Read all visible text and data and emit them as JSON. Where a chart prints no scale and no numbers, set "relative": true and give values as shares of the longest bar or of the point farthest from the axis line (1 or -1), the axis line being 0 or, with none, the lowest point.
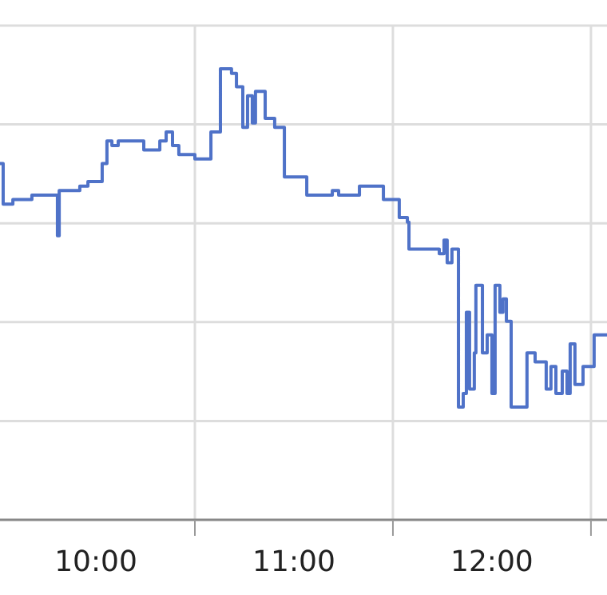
{
  "chart_data": {
    "type": "step",
    "relative": true,
    "grid": true,
    "legend": false,
    "xlim": [
      9.516,
      12.581
    ],
    "xticks": [
      {
        "value": 10,
        "label": "10:00"
      },
      {
        "value": 10.5,
        "label": null
      },
      {
        "value": 11,
        "label": "11:00"
      },
      {
        "value": 11.5,
        "label": null
      },
      {
        "value": 12,
        "label": "12:00"
      },
      {
        "value": 12.5,
        "label": null
      }
    ],
    "series": [
      {
        "color": "#4f72c8",
        "x": [
          9.516,
          9.532,
          9.581,
          9.621,
          9.677,
          9.758,
          9.806,
          9.815,
          9.919,
          9.96,
          10.032,
          10.056,
          10.081,
          10.113,
          10.242,
          10.323,
          10.355,
          10.387,
          10.419,
          10.5,
          10.548,
          10.581,
          10.629,
          10.685,
          10.71,
          10.742,
          10.766,
          10.79,
          10.806,
          10.839,
          10.855,
          10.903,
          10.952,
          11.065,
          11.194,
          11.226,
          11.331,
          11.419,
          11.452,
          11.532,
          11.573,
          11.581,
          11.734,
          11.758,
          11.774,
          11.798,
          11.831,
          11.855,
          11.871,
          11.887,
          11.911,
          11.919,
          11.952,
          11.976,
          12.0,
          12.016,
          12.04,
          12.056,
          12.073,
          12.097,
          12.177,
          12.218,
          12.274,
          12.298,
          12.323,
          12.355,
          12.379,
          12.395,
          12.419,
          12.46,
          12.516,
          12.581
        ],
        "values": [
          0.79,
          0.7,
          0.71,
          0.71,
          0.72,
          0.72,
          0.63,
          0.73,
          0.74,
          0.75,
          0.79,
          0.84,
          0.83,
          0.84,
          0.82,
          0.84,
          0.86,
          0.83,
          0.81,
          0.8,
          0.8,
          0.86,
          1,
          0.99,
          0.96,
          0.87,
          0.94,
          0.88,
          0.95,
          0.95,
          0.89,
          0.87,
          0.76,
          0.72,
          0.73,
          0.72,
          0.74,
          0.74,
          0.71,
          0.67,
          0.66,
          0.6,
          0.59,
          0.62,
          0.57,
          0.6,
          0.25,
          0.28,
          0.46,
          0.29,
          0.37,
          0.52,
          0.37,
          0.41,
          0.28,
          0.52,
          0.46,
          0.49,
          0.44,
          0.25,
          0.37,
          0.35,
          0.29,
          0.34,
          0.28,
          0.33,
          0.28,
          0.39,
          0.3,
          0.34,
          0.41,
          0.41
        ]
      }
    ]
  }
}
